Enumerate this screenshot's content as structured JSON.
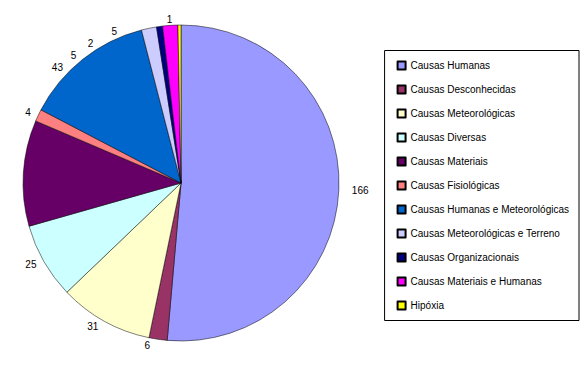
{
  "chart_data": {
    "type": "pie",
    "categories": [
      "Causas Humanas",
      "Causas Desconhecidas",
      "Causas Meteorológicas",
      "Causas Diversas",
      "Causas Materiais",
      "Causas Fisiológicas",
      "Causas Humanas e Meteorológicas",
      "Causas Meteorológicas e Terreno",
      "Causas Organizacionais",
      "Causas Materiais e Humanas",
      "Hipóxia"
    ],
    "values": [
      166,
      6,
      31,
      25,
      35,
      4,
      43,
      5,
      2,
      5,
      1
    ],
    "colors": [
      "#9999ff",
      "#993366",
      "#ffffcc",
      "#ccffff",
      "#660066",
      "#ff8080",
      "#0066cc",
      "#ccccff",
      "#000080",
      "#ff00ff",
      "#ffff00"
    ],
    "data_labels": true,
    "legend": "right"
  }
}
